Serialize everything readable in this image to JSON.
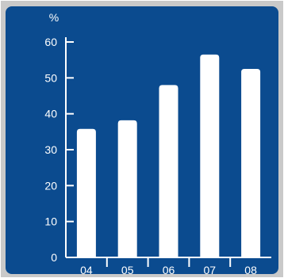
{
  "chart_data": {
    "type": "bar",
    "categories": [
      "04",
      "05",
      "06",
      "07",
      "08"
    ],
    "values": [
      35.8,
      38.2,
      48,
      56.5,
      52.5
    ],
    "title": "",
    "xlabel": "",
    "ylabel": "%",
    "ylim": [
      0,
      60
    ],
    "yticks": [
      0,
      10,
      20,
      30,
      40,
      50,
      60
    ],
    "grid": false,
    "colors": {
      "background": "#0B4B8F",
      "bars": "#FFFFFF",
      "axis": "#FFFFFF",
      "text": "#FFFFFF",
      "border": "#C9C9C9"
    }
  }
}
